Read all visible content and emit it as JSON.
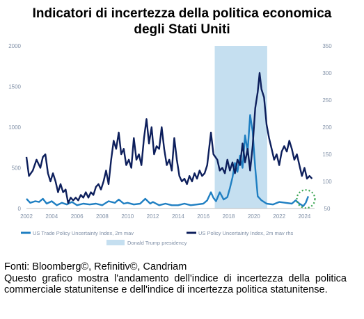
{
  "title_line1": "Indicatori di incertezza della politica economica",
  "title_line2": "degli Stati Uniti",
  "source": "Fonti: Bloomberg©, Refinitiv©, Candriam",
  "description": "Questo grafico mostra l'andamento dell'indice di incertezza della politica commerciale statunitense e dell'indice di incertezza politica statunitense.",
  "chart_data": {
    "type": "line",
    "x_ticks": [
      "2002",
      "2004",
      "2006",
      "2008",
      "2010",
      "2012",
      "2014",
      "2016",
      "2018",
      "2020",
      "2022",
      "2024"
    ],
    "y_left_ticks": [
      "0",
      "500",
      "1000",
      "1500",
      "2000"
    ],
    "y_right_ticks": [
      "50",
      "100",
      "150",
      "200",
      "250",
      "300",
      "350"
    ],
    "ylim_left": [
      0,
      2000
    ],
    "ylim_right": [
      50,
      350
    ],
    "xlim": [
      2002,
      2024.8
    ],
    "shaded_region": {
      "label": "Donald Trump presidency",
      "x_start": 2016.9,
      "x_end": 2021.05,
      "color": "#c5dff0"
    },
    "highlight_circle": {
      "x": 2024.0,
      "y_left": 100,
      "color": "#3aa552"
    },
    "series": [
      {
        "name": "US Trade Policy Uncertainty Index, 2m mav",
        "axis": "left",
        "color": "#1f7fc2",
        "points": [
          [
            2002,
            120
          ],
          [
            2002.3,
            70
          ],
          [
            2002.7,
            90
          ],
          [
            2003,
            80
          ],
          [
            2003.3,
            120
          ],
          [
            2003.6,
            60
          ],
          [
            2004,
            90
          ],
          [
            2004.4,
            40
          ],
          [
            2004.8,
            70
          ],
          [
            2005.2,
            50
          ],
          [
            2005.6,
            80
          ],
          [
            2006,
            40
          ],
          [
            2006.5,
            60
          ],
          [
            2007,
            50
          ],
          [
            2007.5,
            60
          ],
          [
            2008,
            40
          ],
          [
            2008.5,
            90
          ],
          [
            2009,
            70
          ],
          [
            2009.3,
            110
          ],
          [
            2009.7,
            60
          ],
          [
            2010,
            70
          ],
          [
            2010.5,
            50
          ],
          [
            2011,
            60
          ],
          [
            2011.4,
            120
          ],
          [
            2011.8,
            60
          ],
          [
            2012,
            80
          ],
          [
            2012.5,
            40
          ],
          [
            2013,
            60
          ],
          [
            2013.5,
            40
          ],
          [
            2014,
            40
          ],
          [
            2014.5,
            60
          ],
          [
            2015,
            40
          ],
          [
            2015.5,
            50
          ],
          [
            2016,
            60
          ],
          [
            2016.3,
            100
          ],
          [
            2016.6,
            200
          ],
          [
            2016.8,
            130
          ],
          [
            2017,
            90
          ],
          [
            2017.3,
            200
          ],
          [
            2017.6,
            110
          ],
          [
            2017.9,
            140
          ],
          [
            2018.1,
            250
          ],
          [
            2018.3,
            380
          ],
          [
            2018.5,
            560
          ],
          [
            2018.7,
            450
          ],
          [
            2018.9,
            650
          ],
          [
            2019.1,
            500
          ],
          [
            2019.3,
            900
          ],
          [
            2019.5,
            700
          ],
          [
            2019.7,
            1150
          ],
          [
            2019.9,
            950
          ],
          [
            2020.1,
            500
          ],
          [
            2020.3,
            150
          ],
          [
            2020.6,
            100
          ],
          [
            2021,
            60
          ],
          [
            2021.5,
            50
          ],
          [
            2022,
            80
          ],
          [
            2022.5,
            70
          ],
          [
            2023,
            60
          ],
          [
            2023.3,
            100
          ],
          [
            2023.6,
            60
          ],
          [
            2023.9,
            30
          ],
          [
            2024.1,
            70
          ],
          [
            2024.3,
            150
          ]
        ]
      },
      {
        "name": "US Policy Uncertainty Index, 2m mav rhs",
        "axis": "right",
        "color": "#0d1f5c",
        "points": [
          [
            2002,
            145
          ],
          [
            2002.2,
            110
          ],
          [
            2002.5,
            120
          ],
          [
            2002.8,
            140
          ],
          [
            2003.1,
            125
          ],
          [
            2003.3,
            145
          ],
          [
            2003.5,
            150
          ],
          [
            2003.7,
            115
          ],
          [
            2003.9,
            100
          ],
          [
            2004.1,
            115
          ],
          [
            2004.3,
            100
          ],
          [
            2004.5,
            80
          ],
          [
            2004.7,
            95
          ],
          [
            2004.9,
            80
          ],
          [
            2005.1,
            85
          ],
          [
            2005.3,
            60
          ],
          [
            2005.5,
            70
          ],
          [
            2005.7,
            65
          ],
          [
            2005.9,
            70
          ],
          [
            2006.1,
            65
          ],
          [
            2006.3,
            75
          ],
          [
            2006.5,
            70
          ],
          [
            2006.7,
            80
          ],
          [
            2006.9,
            70
          ],
          [
            2007.1,
            80
          ],
          [
            2007.3,
            75
          ],
          [
            2007.5,
            90
          ],
          [
            2007.7,
            95
          ],
          [
            2007.9,
            85
          ],
          [
            2008.1,
            100
          ],
          [
            2008.3,
            120
          ],
          [
            2008.5,
            95
          ],
          [
            2008.7,
            140
          ],
          [
            2008.9,
            175
          ],
          [
            2009.1,
            160
          ],
          [
            2009.3,
            190
          ],
          [
            2009.5,
            150
          ],
          [
            2009.7,
            160
          ],
          [
            2009.9,
            130
          ],
          [
            2010.1,
            140
          ],
          [
            2010.3,
            125
          ],
          [
            2010.5,
            180
          ],
          [
            2010.7,
            140
          ],
          [
            2010.9,
            150
          ],
          [
            2011.1,
            130
          ],
          [
            2011.3,
            180
          ],
          [
            2011.5,
            215
          ],
          [
            2011.7,
            170
          ],
          [
            2011.9,
            200
          ],
          [
            2012.1,
            150
          ],
          [
            2012.3,
            165
          ],
          [
            2012.5,
            160
          ],
          [
            2012.7,
            200
          ],
          [
            2012.9,
            160
          ],
          [
            2013.1,
            130
          ],
          [
            2013.3,
            140
          ],
          [
            2013.5,
            120
          ],
          [
            2013.7,
            180
          ],
          [
            2013.9,
            140
          ],
          [
            2014.1,
            110
          ],
          [
            2014.3,
            100
          ],
          [
            2014.5,
            105
          ],
          [
            2014.7,
            95
          ],
          [
            2014.9,
            110
          ],
          [
            2015.1,
            100
          ],
          [
            2015.3,
            115
          ],
          [
            2015.5,
            105
          ],
          [
            2015.7,
            120
          ],
          [
            2015.9,
            110
          ],
          [
            2016.1,
            115
          ],
          [
            2016.3,
            130
          ],
          [
            2016.6,
            190
          ],
          [
            2016.8,
            150
          ],
          [
            2017.1,
            140
          ],
          [
            2017.3,
            120
          ],
          [
            2017.5,
            125
          ],
          [
            2017.7,
            115
          ],
          [
            2017.9,
            140
          ],
          [
            2018.1,
            120
          ],
          [
            2018.3,
            135
          ],
          [
            2018.5,
            115
          ],
          [
            2018.7,
            140
          ],
          [
            2018.9,
            130
          ],
          [
            2019.1,
            170
          ],
          [
            2019.3,
            135
          ],
          [
            2019.5,
            160
          ],
          [
            2019.7,
            120
          ],
          [
            2019.9,
            165
          ],
          [
            2020.1,
            235
          ],
          [
            2020.3,
            265
          ],
          [
            2020.45,
            300
          ],
          [
            2020.6,
            270
          ],
          [
            2020.8,
            255
          ],
          [
            2021,
            205
          ],
          [
            2021.2,
            180
          ],
          [
            2021.4,
            160
          ],
          [
            2021.6,
            140
          ],
          [
            2021.8,
            150
          ],
          [
            2022.0,
            130
          ],
          [
            2022.2,
            155
          ],
          [
            2022.4,
            165
          ],
          [
            2022.6,
            155
          ],
          [
            2022.8,
            175
          ],
          [
            2023.0,
            160
          ],
          [
            2023.2,
            140
          ],
          [
            2023.4,
            150
          ],
          [
            2023.6,
            130
          ],
          [
            2023.8,
            110
          ],
          [
            2024.0,
            125
          ],
          [
            2024.2,
            105
          ],
          [
            2024.4,
            110
          ],
          [
            2024.6,
            105
          ]
        ]
      }
    ],
    "legend": {
      "placement": "bottom"
    }
  }
}
